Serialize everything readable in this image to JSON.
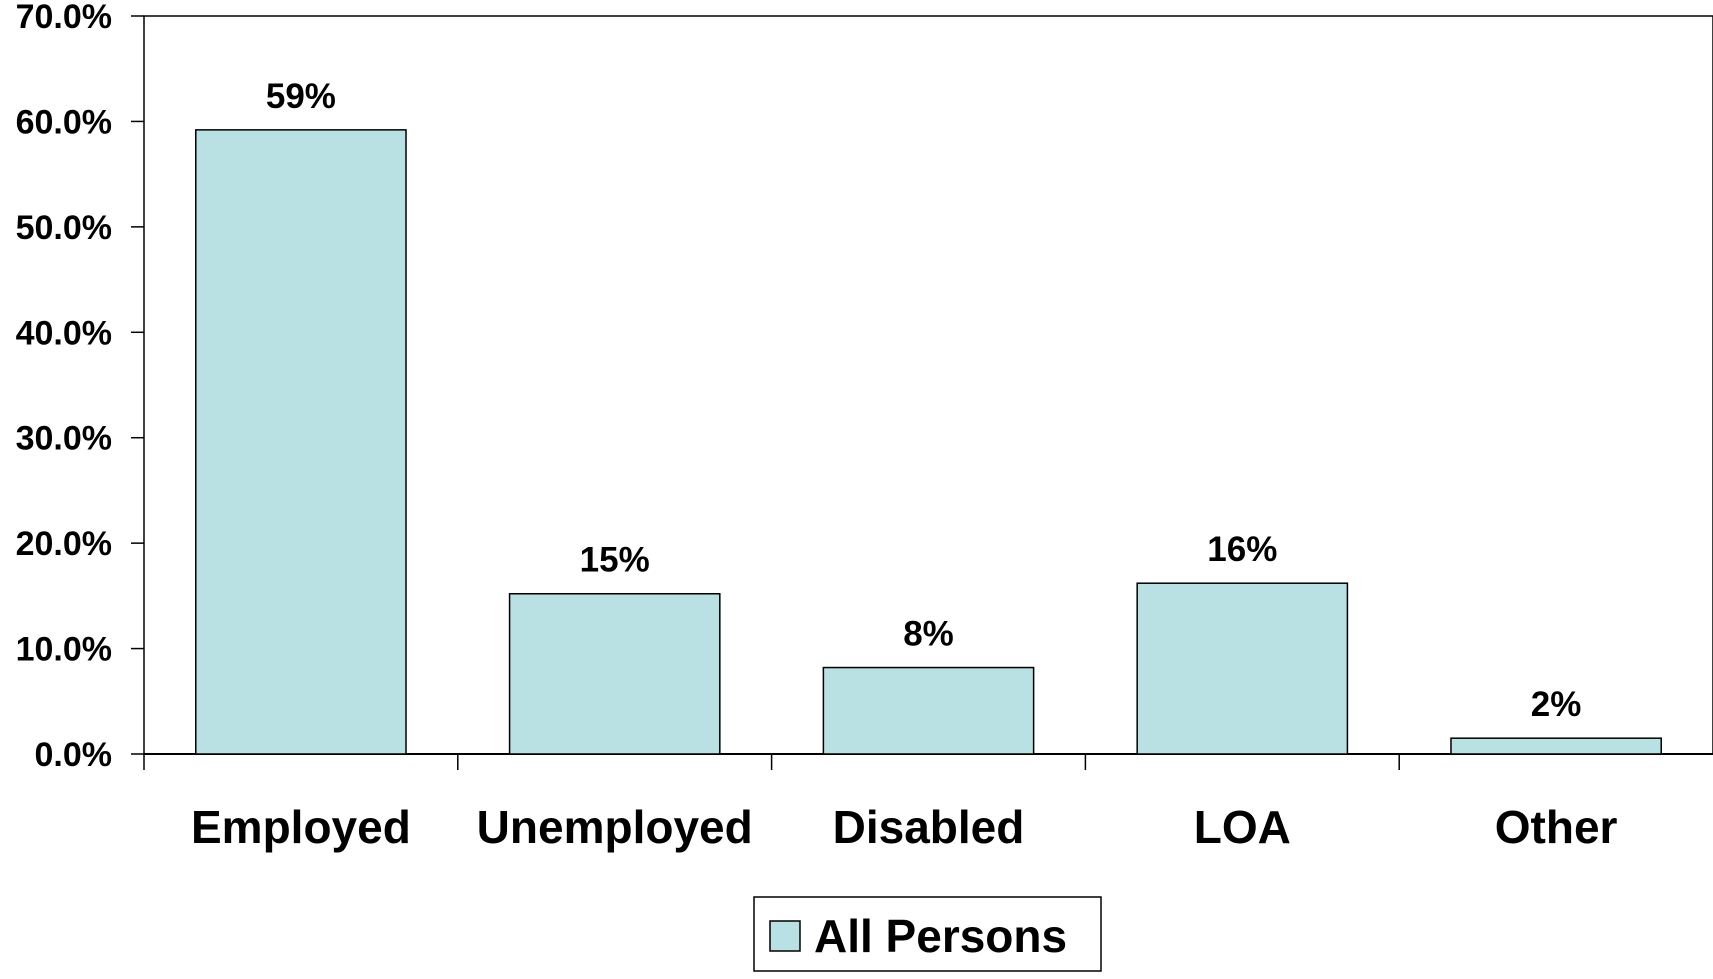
{
  "chart_data": {
    "type": "bar",
    "title": "",
    "xlabel": "",
    "ylabel": "",
    "categories": [
      "Employed",
      "Unemployed",
      "Disabled",
      "LOA",
      "Other"
    ],
    "series": [
      {
        "name": "All Persons",
        "values": [
          59.2,
          15.2,
          8.2,
          16.2,
          1.5
        ],
        "data_labels": [
          "59%",
          "15%",
          "8%",
          "16%",
          "2%"
        ],
        "color": "#b9e0e3"
      }
    ],
    "ylim": [
      0,
      70
    ],
    "yticks": [
      0,
      10,
      20,
      30,
      40,
      50,
      60,
      70
    ],
    "ytick_labels": [
      "0.0%",
      "10.0%",
      "20.0%",
      "30.0%",
      "40.0%",
      "50.0%",
      "60.0%",
      "70.0%"
    ],
    "grid": false,
    "legend_position": "bottom-center"
  },
  "colors": {
    "bar_fill": "#b9e0e3",
    "bar_stroke": "#000000",
    "axis": "#000000"
  }
}
